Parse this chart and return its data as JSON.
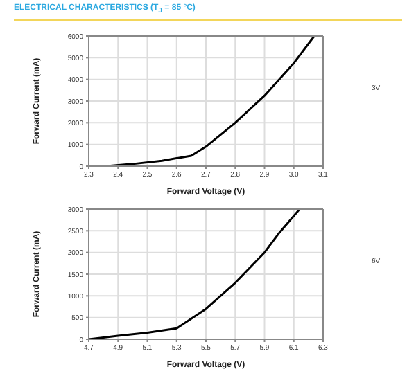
{
  "chart_data": [
    {
      "type": "line",
      "title": "ELECTRICAL CHARACTERISTICS (T$_{J}$ = 85 °C)",
      "xlabel": "Forward Voltage (V)",
      "ylabel": "Forward Current (mA)",
      "annotations": [
        "3V"
      ],
      "series": [
        {
          "color": "#000000",
          "x": [
            2.36,
            2.45,
            2.55,
            2.65,
            2.7,
            2.8,
            2.9,
            3.0,
            3.07
          ],
          "values": [
            0,
            100,
            250,
            480,
            900,
            2000,
            3250,
            4750,
            6000
          ]
        }
      ],
      "xlim": [
        2.3,
        3.1
      ],
      "xticks": [
        2.3,
        2.4,
        2.5,
        2.6,
        2.7,
        2.8,
        2.9,
        {
          "value": 3,
          "label": "3.0"
        },
        3.1
      ],
      "ylim": [
        0,
        6000
      ],
      "yticks": [
        0,
        1000,
        2000,
        3000,
        4000,
        5000,
        6000
      ],
      "grid": true,
      "legend": false
    },
    {
      "type": "line",
      "xlabel": "Forward Voltage (V)",
      "ylabel": "Forward Current (mA)",
      "annotations": [
        "6V"
      ],
      "series": [
        {
          "color": "#000000",
          "x": [
            4.7,
            4.9,
            5.1,
            5.3,
            5.5,
            5.7,
            5.9,
            6.0,
            6.14
          ],
          "values": [
            0,
            80,
            150,
            250,
            700,
            1300,
            2000,
            2450,
            3000
          ]
        }
      ],
      "xlim": [
        4.7,
        6.3
      ],
      "xticks": [
        4.7,
        4.9,
        5.1,
        5.3,
        5.5,
        5.7,
        5.9,
        6.1,
        6.3
      ],
      "ylim": [
        0,
        3000
      ],
      "yticks": [
        0,
        500,
        1000,
        1500,
        2000,
        2500,
        3000
      ],
      "grid": true,
      "legend": false
    }
  ]
}
